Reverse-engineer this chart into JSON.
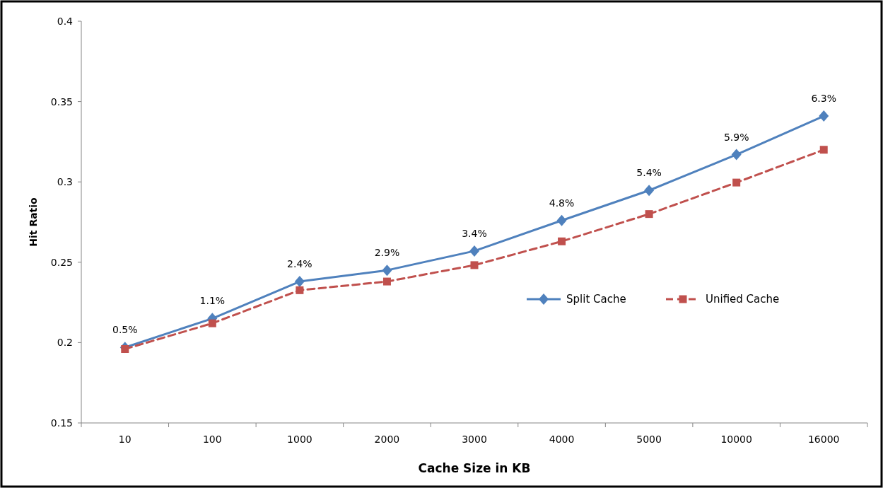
{
  "chart_data": {
    "type": "line",
    "xlabel": "Cache Size in KB",
    "ylabel": "Hit Ratio",
    "categories": [
      "10",
      "100",
      "1000",
      "2000",
      "3000",
      "4000",
      "5000",
      "10000",
      "16000"
    ],
    "series": [
      {
        "name": "Split Cache",
        "color": "#4f81bd",
        "marker": "diamond",
        "line_style": "solid",
        "values": [
          0.197,
          0.215,
          0.238,
          0.245,
          0.257,
          0.276,
          0.2947,
          0.317,
          0.341
        ]
      },
      {
        "name": "Unified Cache",
        "color": "#c0504d",
        "marker": "square",
        "line_style": "dashed",
        "values": [
          0.196,
          0.212,
          0.2326,
          0.238,
          0.2482,
          0.263,
          0.28,
          0.2996,
          0.32
        ]
      }
    ],
    "ylim": [
      0.15,
      0.4
    ],
    "yticks": [
      0.15,
      0.2,
      0.25,
      0.3,
      0.35,
      0.4
    ],
    "grid": false,
    "legend": "right",
    "annotations": [
      {
        "text": "0.5%",
        "x": "10",
        "y": 0.197
      },
      {
        "text": "1.1%",
        "x": "100",
        "y": 0.215
      },
      {
        "text": "2.4%",
        "x": "1000",
        "y": 0.238
      },
      {
        "text": "2.9%",
        "x": "2000",
        "y": 0.245
      },
      {
        "text": "3.4%",
        "x": "3000",
        "y": 0.257
      },
      {
        "text": "4.8%",
        "x": "4000",
        "y": 0.276
      },
      {
        "text": "5.4%",
        "x": "5000",
        "y": 0.2947
      },
      {
        "text": "5.9%",
        "x": "10000",
        "y": 0.317
      },
      {
        "text": "6.3%",
        "x": "16000",
        "y": 0.341
      }
    ]
  }
}
